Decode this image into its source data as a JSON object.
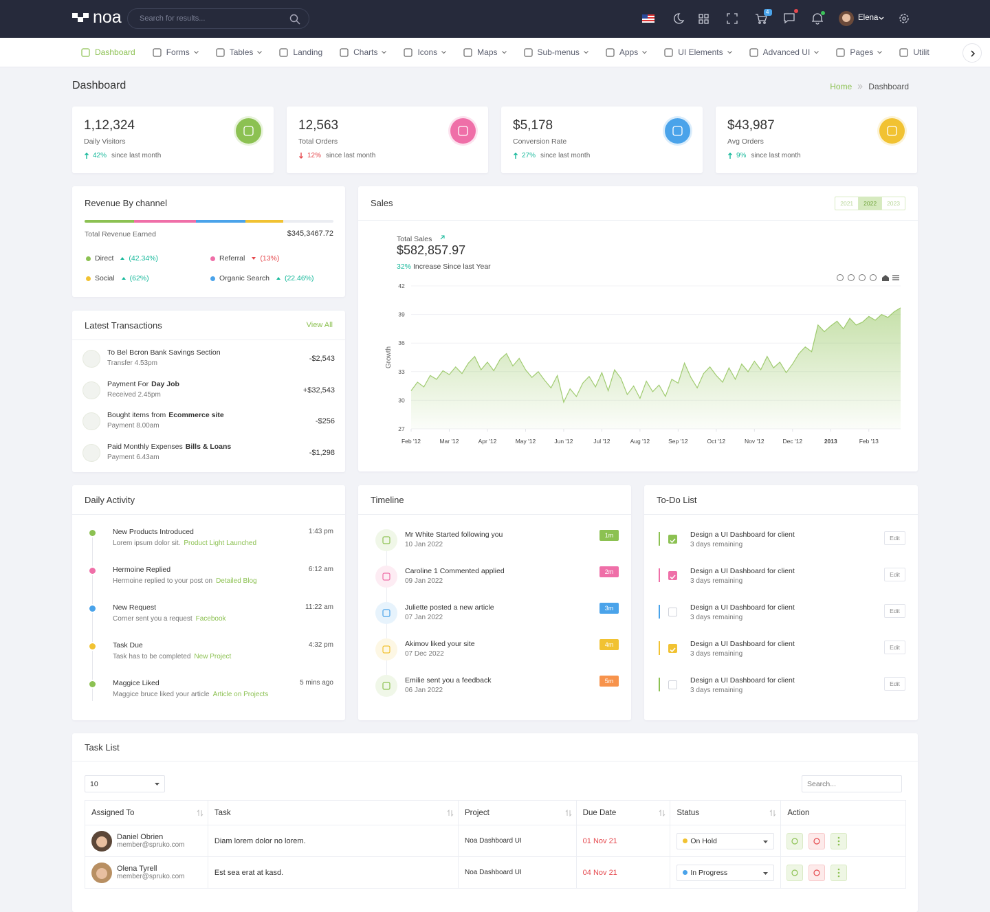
{
  "header": {
    "logo": "noa",
    "search_placeholder": "Search for results...",
    "cart_count": "4",
    "user": "Elena"
  },
  "nav": [
    {
      "label": "Dashboard",
      "dropdown": false,
      "active": true
    },
    {
      "label": "Forms",
      "dropdown": true
    },
    {
      "label": "Tables",
      "dropdown": true
    },
    {
      "label": "Landing",
      "dropdown": false
    },
    {
      "label": "Charts",
      "dropdown": true
    },
    {
      "label": "Icons",
      "dropdown": true
    },
    {
      "label": "Maps",
      "dropdown": true
    },
    {
      "label": "Sub-menus",
      "dropdown": true
    },
    {
      "label": "Apps",
      "dropdown": true
    },
    {
      "label": "UI Elements",
      "dropdown": true
    },
    {
      "label": "Advanced UI",
      "dropdown": true
    },
    {
      "label": "Pages",
      "dropdown": true
    },
    {
      "label": "Utilit",
      "dropdown": false
    }
  ],
  "page": {
    "title": "Dashboard",
    "breadcrumb": [
      "Home",
      "Dashboard"
    ]
  },
  "stats": [
    {
      "value": "1,12,324",
      "label": "Daily Visitors",
      "change": "42%",
      "trend": "up",
      "note": "since last month",
      "color": "#8cc152"
    },
    {
      "value": "12,563",
      "label": "Total Orders",
      "change": "12%",
      "trend": "down",
      "note": "since last month",
      "color": "#ef6fa8"
    },
    {
      "value": "$5,178",
      "label": "Conversion Rate",
      "change": "27%",
      "trend": "up",
      "note": "since last month",
      "color": "#4aa3ea"
    },
    {
      "value": "$43,987",
      "label": "Avg Orders",
      "change": "9%",
      "trend": "up",
      "note": "since last month",
      "color": "#f1c232"
    }
  ],
  "revenue": {
    "title": "Revenue By channel",
    "total_label": "Total Revenue Earned",
    "total": "$345,3467.72",
    "channels": [
      {
        "name": "Direct",
        "change": "(42.34%)",
        "trend": "up",
        "color": "#8cc152"
      },
      {
        "name": "Referral",
        "change": "(13%)",
        "trend": "down",
        "color": "#ef6fa8"
      },
      {
        "name": "Social",
        "change": "(62%)",
        "trend": "up",
        "color": "#f1c232"
      },
      {
        "name": "Organic Search",
        "change": "(22.46%)",
        "trend": "up",
        "color": "#4aa3ea"
      }
    ]
  },
  "transactions": {
    "title": "Latest Transactions",
    "link": "View All",
    "items": [
      {
        "title": "To Bel Bcron Bank Savings Section",
        "sub": "Transfer 4.53pm",
        "amount": "-$2,543"
      },
      {
        "title": "Payment For",
        "strong": "Day Job",
        "sub": "Received 2.45pm",
        "amount": "+$32,543"
      },
      {
        "title": "Bought items from",
        "strong": "Ecommerce site",
        "sub": "Payment 8.00am",
        "amount": "-$256"
      },
      {
        "title": "Paid Monthly Expenses",
        "strong": "Bills & Loans",
        "sub": "Payment 6.43am",
        "amount": "-$1,298"
      }
    ]
  },
  "chart_data": {
    "type": "area",
    "title": "Sales",
    "subtitle": "Total Sales",
    "total": "$582,857.97",
    "change": "32%",
    "change_text": "Increase Since last Year",
    "ylabel": "Growth",
    "year_buttons": [
      "2021",
      "2022",
      "2023"
    ],
    "active_year": 1,
    "color": "#8cc152",
    "grid": true,
    "values": [
      31.0,
      31.9,
      31.4,
      32.6,
      32.2,
      33.1,
      32.7,
      33.5,
      32.8,
      33.9,
      34.6,
      33.2,
      34.0,
      33.1,
      34.3,
      34.9,
      33.6,
      34.4,
      33.2,
      32.4,
      33.0,
      32.1,
      31.3,
      32.6,
      29.8,
      31.2,
      30.4,
      31.8,
      32.5,
      31.4,
      32.9,
      31.0,
      33.2,
      32.3,
      30.6,
      31.5,
      30.2,
      32.0,
      30.9,
      31.6,
      30.4,
      32.2,
      31.8,
      33.9,
      32.4,
      31.3,
      32.8,
      33.5,
      32.6,
      31.9,
      33.4,
      32.2,
      33.8,
      33.0,
      34.1,
      33.2,
      34.6,
      33.4,
      34.0,
      32.9,
      33.8,
      34.9,
      35.6,
      35.1,
      37.9,
      37.2,
      37.8,
      38.3,
      37.5,
      38.6,
      37.9,
      38.2,
      38.8,
      38.4,
      39.0,
      38.7,
      39.3,
      39.7
    ],
    "xlim": [
      0,
      77
    ],
    "xticks": [
      {
        "value": 0,
        "label": "Feb '12"
      },
      {
        "value": 6,
        "label": "Mar '12"
      },
      {
        "value": 12,
        "label": "Apr '12"
      },
      {
        "value": 18,
        "label": "May '12"
      },
      {
        "value": 24,
        "label": "Jun '12"
      },
      {
        "value": 30,
        "label": "Jul '12"
      },
      {
        "value": 36,
        "label": "Aug '12"
      },
      {
        "value": 42,
        "label": "Sep '12"
      },
      {
        "value": 48,
        "label": "Oct '12"
      },
      {
        "value": 54,
        "label": "Nov '12"
      },
      {
        "value": 60,
        "label": "Dec '12"
      },
      {
        "value": 66,
        "label": "2013"
      },
      {
        "value": 72,
        "label": "Feb '13"
      }
    ],
    "ylim": [
      27,
      42
    ],
    "yticks": [
      27,
      30,
      33,
      36,
      39,
      42
    ]
  },
  "activity": {
    "title": "Daily Activity",
    "items": [
      {
        "title": "New Products Introduced",
        "time": "1:43 pm",
        "text": "Lorem ipsum dolor sit.",
        "link": "Product Light Launched",
        "color": "#8cc152"
      },
      {
        "title": "Hermoine Replied",
        "time": "6:12 am",
        "text": "Hermoine replied to your post on",
        "link": "Detailed Blog",
        "color": "#ef6fa8"
      },
      {
        "title": "New Request",
        "time": "11:22 am",
        "text": "Corner sent you a request",
        "link": "Facebook",
        "color": "#4aa3ea"
      },
      {
        "title": "Task Due",
        "time": "4:32 pm",
        "text": "Task has to be completed",
        "link": "New Project",
        "color": "#f1c232"
      },
      {
        "title": "Maggice Liked",
        "time": "5 mins ago",
        "text": "Maggice bruce liked your article",
        "link": "Article on Projects",
        "color": "#8cc152"
      }
    ]
  },
  "timeline": {
    "title": "Timeline",
    "items": [
      {
        "text": "Mr White Started following you",
        "date": "10 Jan 2022",
        "badge": "1m",
        "color": "#8cc152"
      },
      {
        "text": "Caroline 1 Commented applied",
        "date": "09 Jan 2022",
        "badge": "2m",
        "color": "#ef6fa8"
      },
      {
        "text": "Juliette posted a new article",
        "date": "07 Jan 2022",
        "badge": "3m",
        "color": "#4aa3ea"
      },
      {
        "text": "Akimov liked your site",
        "date": "07 Dec 2022",
        "badge": "4m",
        "color": "#f1c232"
      },
      {
        "text": "Emilie sent you a feedback",
        "date": "06 Jan 2022",
        "badge": "5m",
        "color": "#f7934c",
        "icon_color": "#8cc152"
      }
    ]
  },
  "todo": {
    "title": "To-Do List",
    "edit": "Edit",
    "items": [
      {
        "text": "Design a UI Dashboard for client",
        "sub": "3 days remaining",
        "checked": true,
        "color": "#8cc152"
      },
      {
        "text": "Design a UI Dashboard for client",
        "sub": "3 days remaining",
        "checked": true,
        "color": "#ef6fa8"
      },
      {
        "text": "Design a UI Dashboard for client",
        "sub": "3 days remaining",
        "checked": false,
        "color": "#4aa3ea"
      },
      {
        "text": "Design a UI Dashboard for client",
        "sub": "3 days remaining",
        "checked": true,
        "color": "#f1c232"
      },
      {
        "text": "Design a UI Dashboard for client",
        "sub": "3 days remaining",
        "checked": false,
        "color": "#8cc152"
      }
    ]
  },
  "tasks": {
    "title": "Task List",
    "page_size": "10",
    "search_placeholder": "Search...",
    "columns": [
      "Assigned To",
      "Task",
      "Project",
      "Due Date",
      "Status",
      "Action"
    ],
    "rows": [
      {
        "name": "Daniel Obrien",
        "email": "member@spruko.com",
        "task": "Diam lorem dolor no lorem.",
        "project": "Noa Dashboard UI",
        "due": "01 Nov 21",
        "status": "On Hold",
        "status_color": "#f1c232"
      },
      {
        "name": "Olena Tyrell",
        "email": "member@spruko.com",
        "task": "Est sea erat at kasd.",
        "project": "Noa Dashboard UI",
        "due": "04 Nov 21",
        "status": "In Progress",
        "status_color": "#4aa3ea"
      }
    ]
  }
}
